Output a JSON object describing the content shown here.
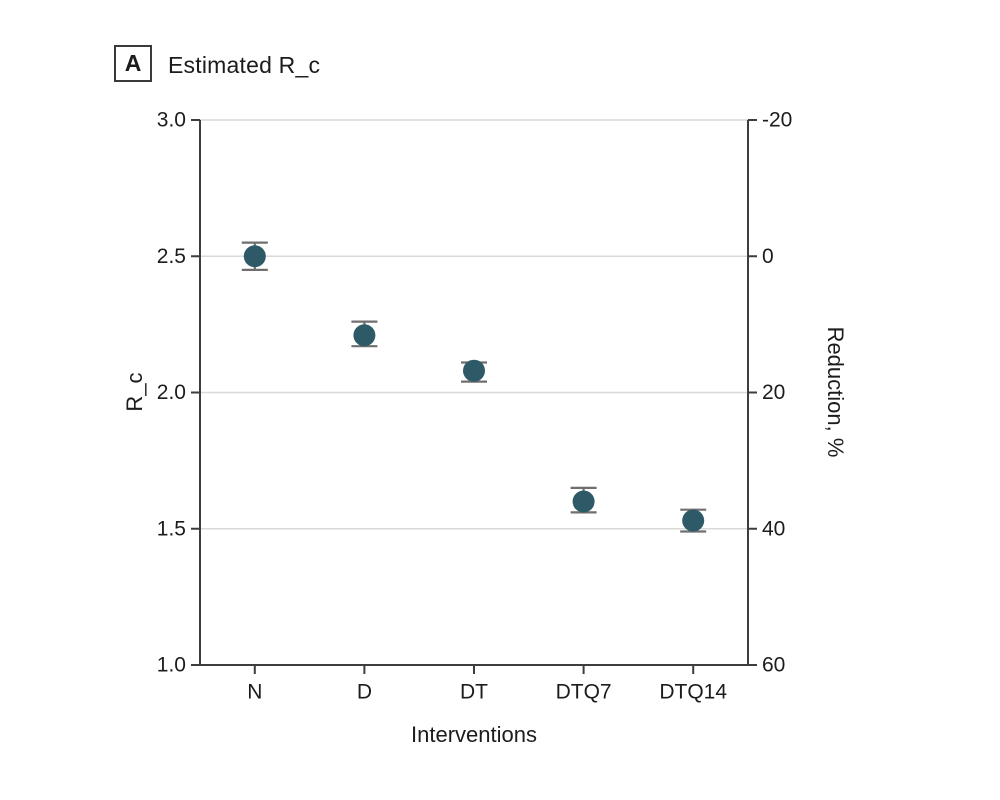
{
  "panel": {
    "label": "A",
    "title": "Estimated R_c"
  },
  "chart_data": {
    "type": "scatter",
    "title": "Estimated R_c",
    "categories": [
      "N",
      "D",
      "DT",
      "DTQ7",
      "DTQ14"
    ],
    "series": [
      {
        "name": "Estimated R_c",
        "values": [
          2.5,
          2.21,
          2.08,
          1.6,
          1.53
        ],
        "ci_low": [
          2.45,
          2.17,
          2.04,
          1.56,
          1.49
        ],
        "ci_high": [
          2.55,
          2.26,
          2.11,
          1.65,
          1.57
        ]
      }
    ],
    "xlabel": "Interventions",
    "ylabel_left": "R_c",
    "ylabel_right": "Reduction, %",
    "ylim_left": [
      1.0,
      3.0
    ],
    "yticks_left_labels": [
      "3.0",
      "2.5",
      "2.0",
      "1.5",
      "1.0"
    ],
    "yticks_left_values": [
      3.0,
      2.5,
      2.0,
      1.5,
      1.0
    ],
    "ylim_right_top_to_bottom": [
      -20,
      60
    ],
    "yticks_right_labels": [
      "-20",
      "0",
      "20",
      "40",
      "60"
    ],
    "yticks_right_values": [
      -20,
      0,
      20,
      40,
      60
    ],
    "grid": "horizontal",
    "legend": "none",
    "colors": {
      "point": "#2e5a68",
      "error_bar": "#6f6f6f",
      "axis": "#3d3d3d",
      "grid": "#d9d9d9",
      "text": "#1c1c1c"
    }
  }
}
